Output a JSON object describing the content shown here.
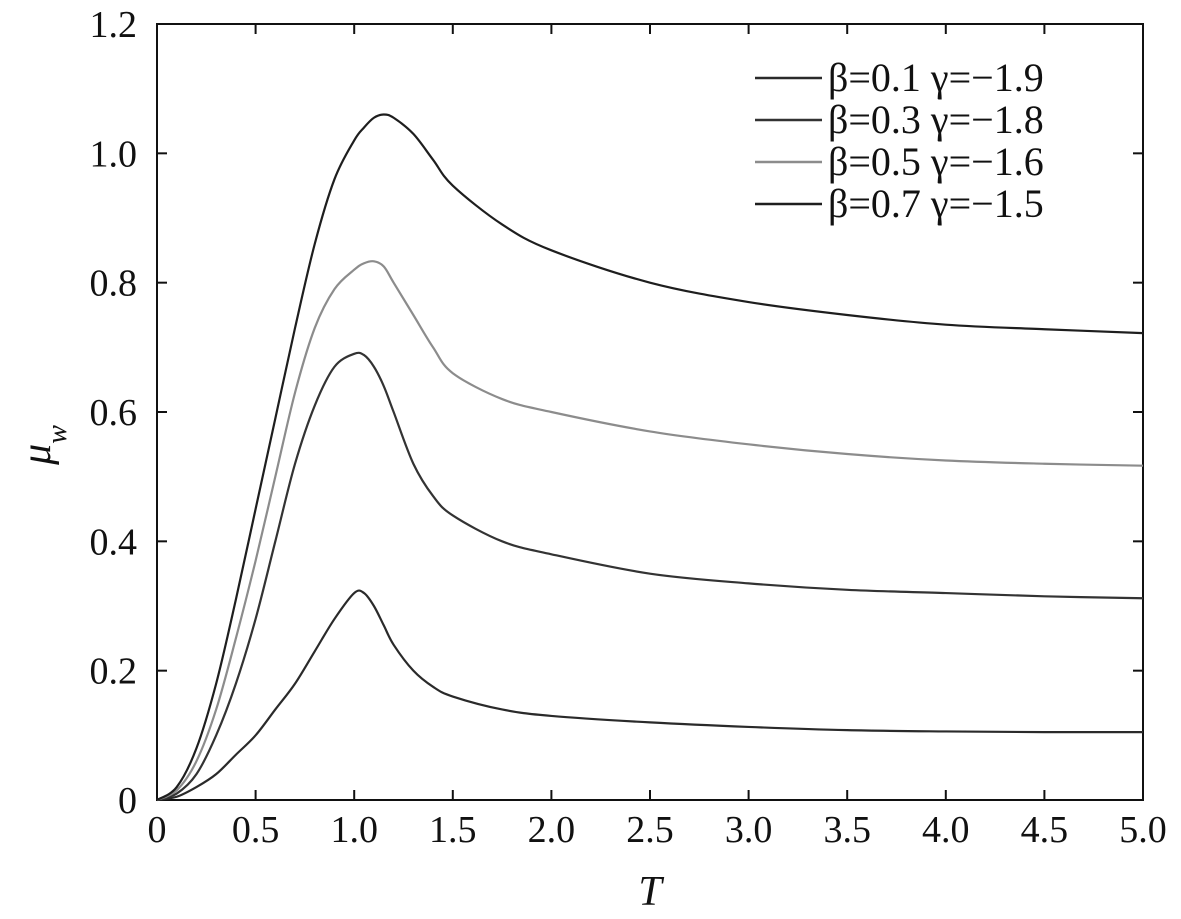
{
  "chart_data": {
    "type": "line",
    "xlabel": "T",
    "ylabel": "μ_w",
    "xlim": [
      0,
      5
    ],
    "ylim": [
      0,
      1.2
    ],
    "xticks": [
      "0",
      "0.5",
      "1.0",
      "1.5",
      "2.0",
      "2.5",
      "3.0",
      "3.5",
      "4.0",
      "4.5",
      "5.0"
    ],
    "yticks": [
      "0",
      "0.2",
      "0.4",
      "0.6",
      "0.8",
      "1.0",
      "1.2"
    ],
    "grid": false,
    "legend_position": "top-right",
    "x": [
      0,
      0.1,
      0.2,
      0.3,
      0.4,
      0.5,
      0.6,
      0.7,
      0.8,
      0.9,
      1.0,
      1.05,
      1.1,
      1.15,
      1.2,
      1.3,
      1.4,
      1.5,
      1.75,
      2.0,
      2.5,
      3.0,
      3.5,
      4.0,
      4.5,
      5.0
    ],
    "series": [
      {
        "name": "β=0.1 γ=−1.9",
        "color": "#2a2a2a",
        "values": [
          0,
          0.005,
          0.02,
          0.04,
          0.07,
          0.1,
          0.14,
          0.18,
          0.23,
          0.28,
          0.32,
          0.32,
          0.3,
          0.27,
          0.24,
          0.2,
          0.175,
          0.16,
          0.14,
          0.13,
          0.12,
          0.113,
          0.108,
          0.106,
          0.105,
          0.105
        ]
      },
      {
        "name": "β=0.3 γ=−1.8",
        "color": "#333333",
        "values": [
          0,
          0.01,
          0.04,
          0.1,
          0.18,
          0.28,
          0.4,
          0.52,
          0.61,
          0.67,
          0.69,
          0.688,
          0.67,
          0.64,
          0.6,
          0.52,
          0.47,
          0.44,
          0.4,
          0.38,
          0.35,
          0.335,
          0.325,
          0.32,
          0.315,
          0.312
        ]
      },
      {
        "name": "β=0.5 γ=−1.6",
        "color": "#8c8c8c",
        "values": [
          0,
          0.015,
          0.06,
          0.14,
          0.25,
          0.37,
          0.5,
          0.63,
          0.73,
          0.79,
          0.82,
          0.83,
          0.833,
          0.825,
          0.8,
          0.75,
          0.7,
          0.66,
          0.62,
          0.6,
          0.57,
          0.55,
          0.535,
          0.525,
          0.52,
          0.517
        ]
      },
      {
        "name": "β=0.7 γ=−1.5",
        "color": "#1e1e1e",
        "values": [
          0,
          0.02,
          0.08,
          0.18,
          0.31,
          0.45,
          0.59,
          0.73,
          0.86,
          0.96,
          1.02,
          1.04,
          1.055,
          1.06,
          1.055,
          1.03,
          0.99,
          0.95,
          0.89,
          0.85,
          0.8,
          0.77,
          0.75,
          0.735,
          0.728,
          0.722
        ]
      }
    ]
  }
}
